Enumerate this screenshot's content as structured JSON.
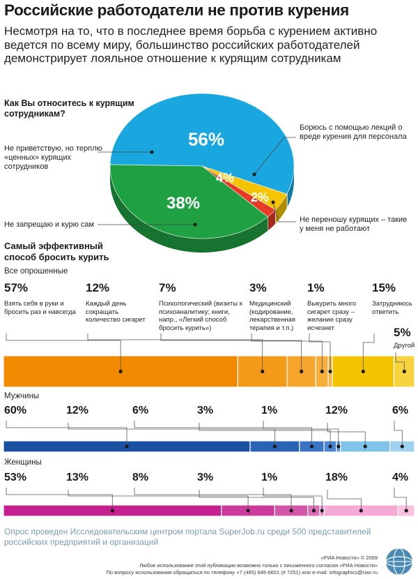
{
  "title": "Российские работодатели не против курения",
  "subtitle": "Несмотря на то, что в последнее время борьба с курением активно ведется по всему миру, большинство российских работодателей демонстрирует лояльное отношение к курящим сотрудникам",
  "colors": {
    "blue": "#1aa7e0",
    "green": "#1ea043",
    "yellow": "#f5c400",
    "red": "#e63a26",
    "orange": "#f28a00",
    "navy": "#1b4fa0",
    "magenta": "#c4208f"
  },
  "chart_data": [
    {
      "type": "pie",
      "title": "Как Вы относитесь к курящим сотрудникам?",
      "slices": [
        {
          "value": 56,
          "display": "56%",
          "label": "Не приветствую, но терплю «ценных» курящих сотрудников",
          "color": "#1aa7e0"
        },
        {
          "value": 4,
          "display": "4%",
          "label": "Борюсь с помощью лекций о вреде курения для персонала",
          "color": "#f5c400"
        },
        {
          "value": 2,
          "display": "2%",
          "label": "Не переношу курящих – такие у меня не работают",
          "color": "#e63a26"
        },
        {
          "value": 38,
          "display": "38%",
          "label": "Не запрещаю и курю сам",
          "color": "#1ea043"
        }
      ]
    },
    {
      "type": "bar",
      "title": "Самый эффективный способ бросить курить",
      "categories": [
        "Взять себя в руки и бросить раз и навсегда",
        "Каждый день сокращать количество сигарет",
        "Психологический (визиты к психоаналитику; книги, напр., «Легкий способ бросить курить»)",
        "Медицинский (кодирование, лекарственная терапия и т.п.)",
        "Выкурить много сигарет сразу – желание сразу исчезнет",
        "Затрудняюсь ответить",
        "Другой"
      ],
      "series": [
        {
          "name": "Все опрошенные",
          "values": [
            57,
            12,
            7,
            3,
            1,
            15,
            5
          ],
          "display": [
            "57%",
            "12%",
            "7%",
            "3%",
            "1%",
            "15%",
            "5%"
          ]
        },
        {
          "name": "Мужчины",
          "values": [
            60,
            12,
            6,
            3,
            1,
            12,
            6
          ],
          "display": [
            "60%",
            "12%",
            "6%",
            "3%",
            "1%",
            "12%",
            "6%"
          ]
        },
        {
          "name": "Женщины",
          "values": [
            53,
            13,
            8,
            3,
            1,
            18,
            4
          ],
          "display": [
            "53%",
            "13%",
            "8%",
            "3%",
            "1%",
            "18%",
            "4%"
          ]
        }
      ]
    }
  ],
  "footer": {
    "source": "Опрос проведен Исследовательским центром портала SuperJob.ru среди 500 представителей российских предприятий и организаций",
    "copyright": "«РИА Новости» © 2009",
    "terms1": "Любое использование этой публикации возможно только с письменного согласия «РИА Новости»",
    "terms2": "По вопросу использования обращаться по телефону +7 (495) 645-6601 (# 7251) или e-mail: infographics@rian.ru"
  }
}
